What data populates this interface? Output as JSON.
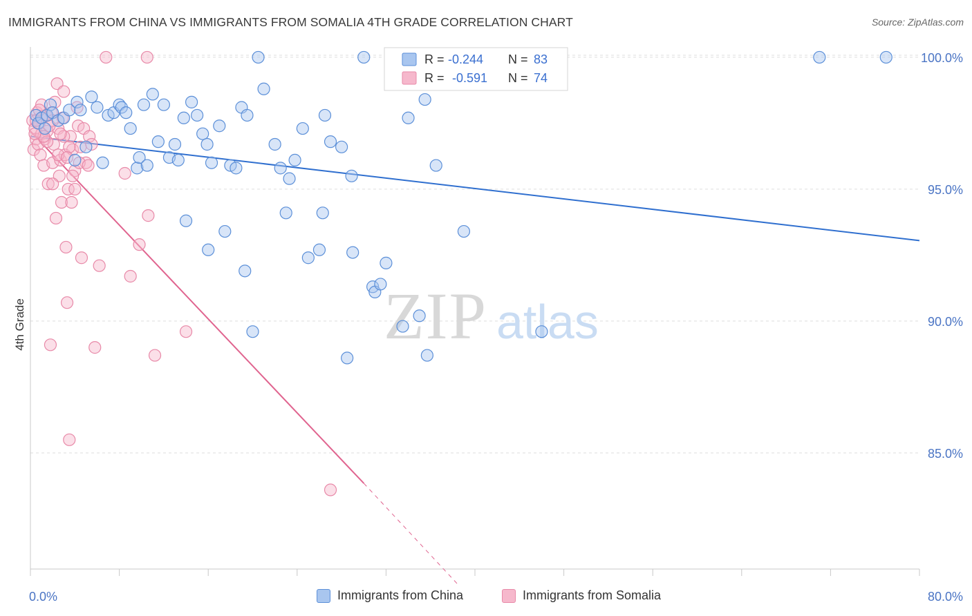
{
  "title": "IMMIGRANTS FROM CHINA VS IMMIGRANTS FROM SOMALIA 4TH GRADE CORRELATION CHART",
  "source": "Source: ZipAtlas.com",
  "watermark": {
    "zip": "ZIP",
    "atlas": "atlas"
  },
  "colors": {
    "china_fill": "#a9c6ef",
    "china_stroke": "#5b8fd8",
    "china_line": "#2f6fcf",
    "somalia_fill": "#f6b8cc",
    "somalia_stroke": "#e889a8",
    "somalia_line": "#e0648f",
    "grid": "#dddddd",
    "axis_text": "#4a74c4"
  },
  "legend": {
    "china": {
      "r_label": "R =",
      "r_value": "-0.244",
      "n_label": "N =",
      "n_value": "83"
    },
    "somalia": {
      "r_label": "R =",
      "r_value": "-0.591",
      "n_label": "N =",
      "n_value": "74"
    }
  },
  "bottom_legend": {
    "china": "Immigrants from China",
    "somalia": "Immigrants from Somalia"
  },
  "chart_data": {
    "type": "scatter",
    "title": "IMMIGRANTS FROM CHINA VS IMMIGRANTS FROM SOMALIA 4TH GRADE CORRELATION CHART",
    "xlabel": "",
    "ylabel": "4th Grade",
    "xlim": [
      0,
      80
    ],
    "ylim": [
      80.6,
      100.6
    ],
    "x_tick_labels": [
      "0.0%",
      "80.0%"
    ],
    "y_ticks": [
      85,
      90,
      95,
      100
    ],
    "y_tick_labels": [
      "85.0%",
      "90.0%",
      "95.0%",
      "100.0%"
    ],
    "grid": true,
    "legend_position": "top-center",
    "series": [
      {
        "name": "Immigrants from China",
        "r": -0.244,
        "n": 83,
        "trend": {
          "x": [
            0,
            80
          ],
          "y": [
            97.0,
            93.05
          ],
          "style": "solid"
        },
        "points": [
          [
            0.5,
            97.8
          ],
          [
            0.7,
            97.5
          ],
          [
            1.0,
            97.7
          ],
          [
            1.3,
            97.3
          ],
          [
            1.5,
            97.8
          ],
          [
            1.8,
            98.2
          ],
          [
            2.0,
            97.9
          ],
          [
            2.5,
            97.6
          ],
          [
            3.0,
            97.7
          ],
          [
            3.5,
            98.0
          ],
          [
            4.0,
            96.1
          ],
          [
            4.2,
            98.3
          ],
          [
            4.5,
            98.0
          ],
          [
            5.0,
            96.6
          ],
          [
            5.5,
            98.5
          ],
          [
            6.0,
            98.1
          ],
          [
            6.5,
            96.0
          ],
          [
            7.0,
            97.8
          ],
          [
            7.5,
            97.9
          ],
          [
            8.0,
            98.2
          ],
          [
            8.2,
            98.1
          ],
          [
            8.6,
            97.9
          ],
          [
            9.0,
            97.3
          ],
          [
            9.6,
            95.8
          ],
          [
            9.8,
            96.2
          ],
          [
            10.2,
            98.2
          ],
          [
            10.5,
            95.9
          ],
          [
            11.0,
            98.6
          ],
          [
            11.5,
            96.8
          ],
          [
            12.0,
            98.2
          ],
          [
            12.5,
            96.2
          ],
          [
            13.0,
            96.7
          ],
          [
            13.3,
            96.1
          ],
          [
            13.8,
            97.7
          ],
          [
            14.0,
            93.8
          ],
          [
            14.5,
            98.3
          ],
          [
            15.0,
            97.8
          ],
          [
            15.5,
            97.1
          ],
          [
            15.9,
            96.7
          ],
          [
            16.0,
            92.7
          ],
          [
            16.3,
            96.0
          ],
          [
            17.0,
            97.4
          ],
          [
            17.5,
            93.4
          ],
          [
            18.0,
            95.9
          ],
          [
            18.5,
            95.8
          ],
          [
            19.0,
            98.1
          ],
          [
            19.3,
            91.9
          ],
          [
            19.5,
            97.8
          ],
          [
            20.0,
            89.6
          ],
          [
            20.5,
            100.0
          ],
          [
            21.0,
            98.8
          ],
          [
            22.0,
            96.7
          ],
          [
            22.5,
            95.8
          ],
          [
            23.0,
            94.1
          ],
          [
            23.3,
            95.4
          ],
          [
            23.8,
            96.1
          ],
          [
            24.5,
            97.3
          ],
          [
            25.0,
            92.4
          ],
          [
            26.0,
            92.7
          ],
          [
            26.3,
            94.1
          ],
          [
            26.5,
            97.8
          ],
          [
            27.0,
            96.8
          ],
          [
            28.0,
            96.6
          ],
          [
            28.5,
            88.6
          ],
          [
            28.9,
            95.5
          ],
          [
            29.0,
            92.6
          ],
          [
            30.0,
            100.0
          ],
          [
            30.8,
            91.3
          ],
          [
            31.0,
            91.1
          ],
          [
            31.5,
            91.4
          ],
          [
            32.0,
            92.2
          ],
          [
            32.6,
            100.0
          ],
          [
            33.5,
            89.8
          ],
          [
            34.0,
            97.7
          ],
          [
            35.0,
            90.2
          ],
          [
            35.5,
            98.4
          ],
          [
            35.7,
            88.7
          ],
          [
            36.5,
            95.9
          ],
          [
            39.0,
            93.4
          ],
          [
            40.5,
            100.0
          ],
          [
            46.0,
            89.6
          ],
          [
            71.0,
            100.0
          ],
          [
            77.0,
            100.0
          ]
        ]
      },
      {
        "name": "Immigrants from Somalia",
        "r": -0.591,
        "n": 74,
        "trend": {
          "x": [
            0,
            30,
            38.5
          ],
          "y": [
            97.2,
            83.85,
            80.0
          ],
          "style": "solid-then-dashed",
          "dash_from_x": 30
        },
        "points": [
          [
            0.2,
            97.6
          ],
          [
            0.3,
            96.5
          ],
          [
            0.4,
            97.3
          ],
          [
            0.5,
            96.9
          ],
          [
            0.6,
            97.9
          ],
          [
            0.7,
            96.7
          ],
          [
            0.8,
            97.5
          ],
          [
            0.9,
            96.3
          ],
          [
            1.0,
            98.2
          ],
          [
            1.1,
            97.7
          ],
          [
            1.2,
            95.9
          ],
          [
            1.3,
            96.9
          ],
          [
            1.4,
            97.8
          ],
          [
            1.5,
            97.2
          ],
          [
            1.6,
            95.2
          ],
          [
            1.8,
            89.1
          ],
          [
            1.9,
            97.9
          ],
          [
            2.0,
            96.0
          ],
          [
            2.1,
            96.7
          ],
          [
            2.2,
            98.3
          ],
          [
            2.3,
            93.9
          ],
          [
            2.4,
            99.0
          ],
          [
            2.5,
            97.3
          ],
          [
            2.6,
            95.5
          ],
          [
            2.7,
            96.1
          ],
          [
            2.8,
            94.5
          ],
          [
            2.9,
            97.7
          ],
          [
            3.0,
            98.7
          ],
          [
            3.1,
            96.3
          ],
          [
            3.2,
            92.8
          ],
          [
            3.3,
            90.7
          ],
          [
            3.4,
            95.0
          ],
          [
            3.5,
            85.5
          ],
          [
            3.6,
            97.0
          ],
          [
            3.7,
            94.5
          ],
          [
            3.8,
            96.5
          ],
          [
            4.0,
            95.0
          ],
          [
            4.2,
            98.1
          ],
          [
            4.3,
            97.4
          ],
          [
            4.5,
            96.6
          ],
          [
            4.6,
            92.4
          ],
          [
            4.8,
            97.3
          ],
          [
            5.0,
            96.0
          ],
          [
            5.3,
            97.0
          ],
          [
            5.5,
            96.7
          ],
          [
            5.8,
            89.0
          ],
          [
            6.2,
            92.1
          ],
          [
            6.8,
            100.0
          ],
          [
            8.5,
            95.6
          ],
          [
            9.0,
            91.7
          ],
          [
            9.8,
            92.9
          ],
          [
            10.5,
            100.0
          ],
          [
            10.6,
            94.0
          ],
          [
            11.2,
            88.7
          ],
          [
            14.0,
            89.6
          ],
          [
            27.0,
            83.6
          ],
          [
            0.5,
            97.6
          ],
          [
            1.0,
            97.1
          ],
          [
            1.5,
            96.8
          ],
          [
            2.0,
            97.6
          ],
          [
            2.5,
            96.3
          ],
          [
            3.0,
            97.0
          ],
          [
            3.5,
            96.6
          ],
          [
            4.0,
            95.7
          ],
          [
            0.8,
            98.0
          ],
          [
            1.7,
            97.4
          ],
          [
            2.7,
            97.1
          ],
          [
            3.3,
            96.2
          ],
          [
            1.2,
            97.0
          ],
          [
            2.0,
            95.2
          ],
          [
            3.8,
            95.5
          ],
          [
            4.4,
            96.0
          ],
          [
            5.2,
            95.9
          ],
          [
            0.4,
            97.1
          ]
        ]
      }
    ]
  }
}
